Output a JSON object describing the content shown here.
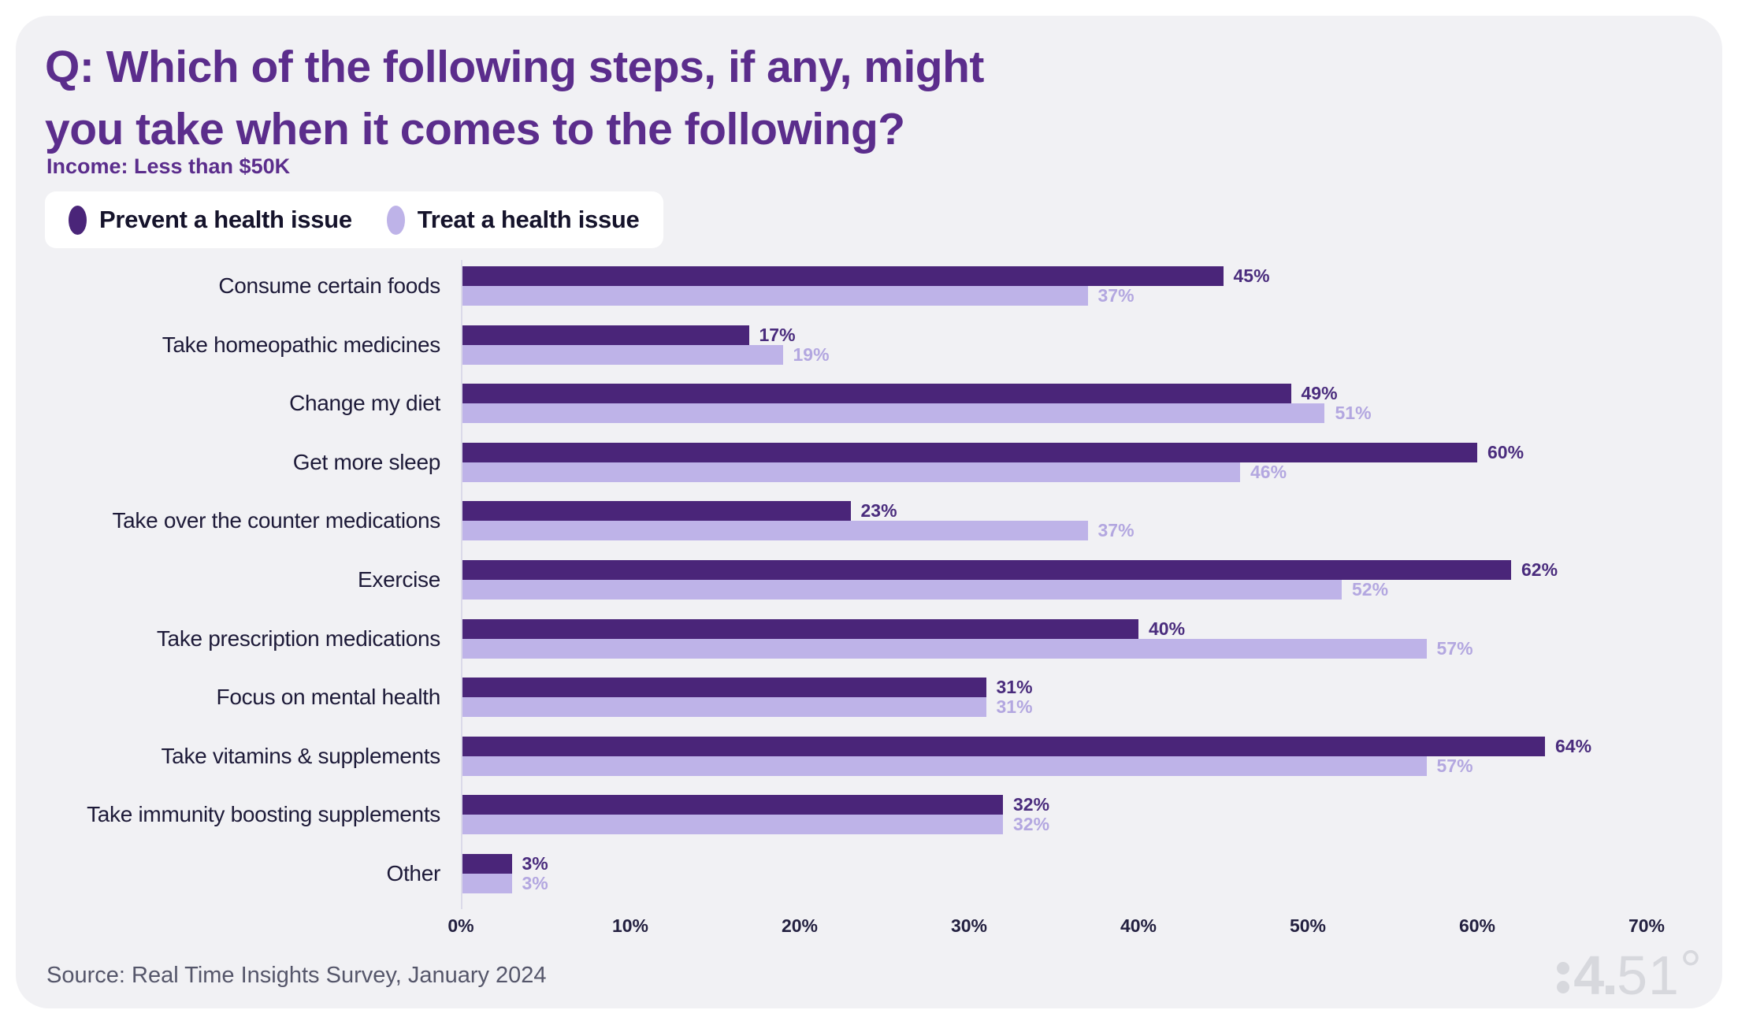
{
  "header": {
    "title_lines": [
      "Q: Which of the following steps, if any, might",
      "you take when it comes to the following?"
    ],
    "subtitle": "Income: Less than $50K"
  },
  "legend": {
    "items": [
      {
        "label": "Prevent a health issue",
        "color": "#4a2579"
      },
      {
        "label": "Treat a health issue",
        "color": "#beb3e8"
      }
    ]
  },
  "chart_data": {
    "type": "bar",
    "orientation": "horizontal",
    "title": "Q: Which of the following steps, if any, might you take when it comes to the following?",
    "subtitle": "Income: Less than $50K",
    "categories": [
      "Consume certain foods",
      "Take homeopathic medicines",
      "Change my diet",
      "Get more sleep",
      "Take over the counter medications",
      "Exercise",
      "Take prescription medications",
      "Focus on mental health",
      "Take vitamins & supplements",
      "Take immunity boosting supplements",
      "Other"
    ],
    "series": [
      {
        "name": "Prevent a health issue",
        "color": "#4a2579",
        "value_label_color": "#4a2c7d",
        "values": [
          45,
          17,
          49,
          60,
          23,
          62,
          40,
          31,
          64,
          32,
          3
        ]
      },
      {
        "name": "Treat a health issue",
        "color": "#beb3e8",
        "value_label_color": "#b3a7e0",
        "values": [
          37,
          19,
          51,
          46,
          37,
          52,
          57,
          31,
          57,
          32,
          3
        ]
      }
    ],
    "value_suffix": "%",
    "xlim": [
      0,
      70
    ],
    "x_ticks": [
      0,
      10,
      20,
      30,
      40,
      50,
      60,
      70
    ],
    "x_tick_labels": [
      "0%",
      "10%",
      "20%",
      "30%",
      "40%",
      "50%",
      "60%",
      "70%"
    ],
    "grid": false,
    "legend_position": "top-left"
  },
  "footer": {
    "source": "Source: Real Time Insights Survey, January 2024",
    "logo": {
      "brand": "84.51°",
      "part_four": "4",
      "part_51": "51",
      "part_degree": "°"
    }
  },
  "colors": {
    "card_background": "#f1f1f4",
    "page_background": "#ffffff",
    "title_purple": "#5b2d8c",
    "category_text": "#1d1a38",
    "tick_text": "#232040",
    "source_text": "#55566a",
    "axis_line": "#dbdae9",
    "logo_gray": "#d7d8dd"
  }
}
